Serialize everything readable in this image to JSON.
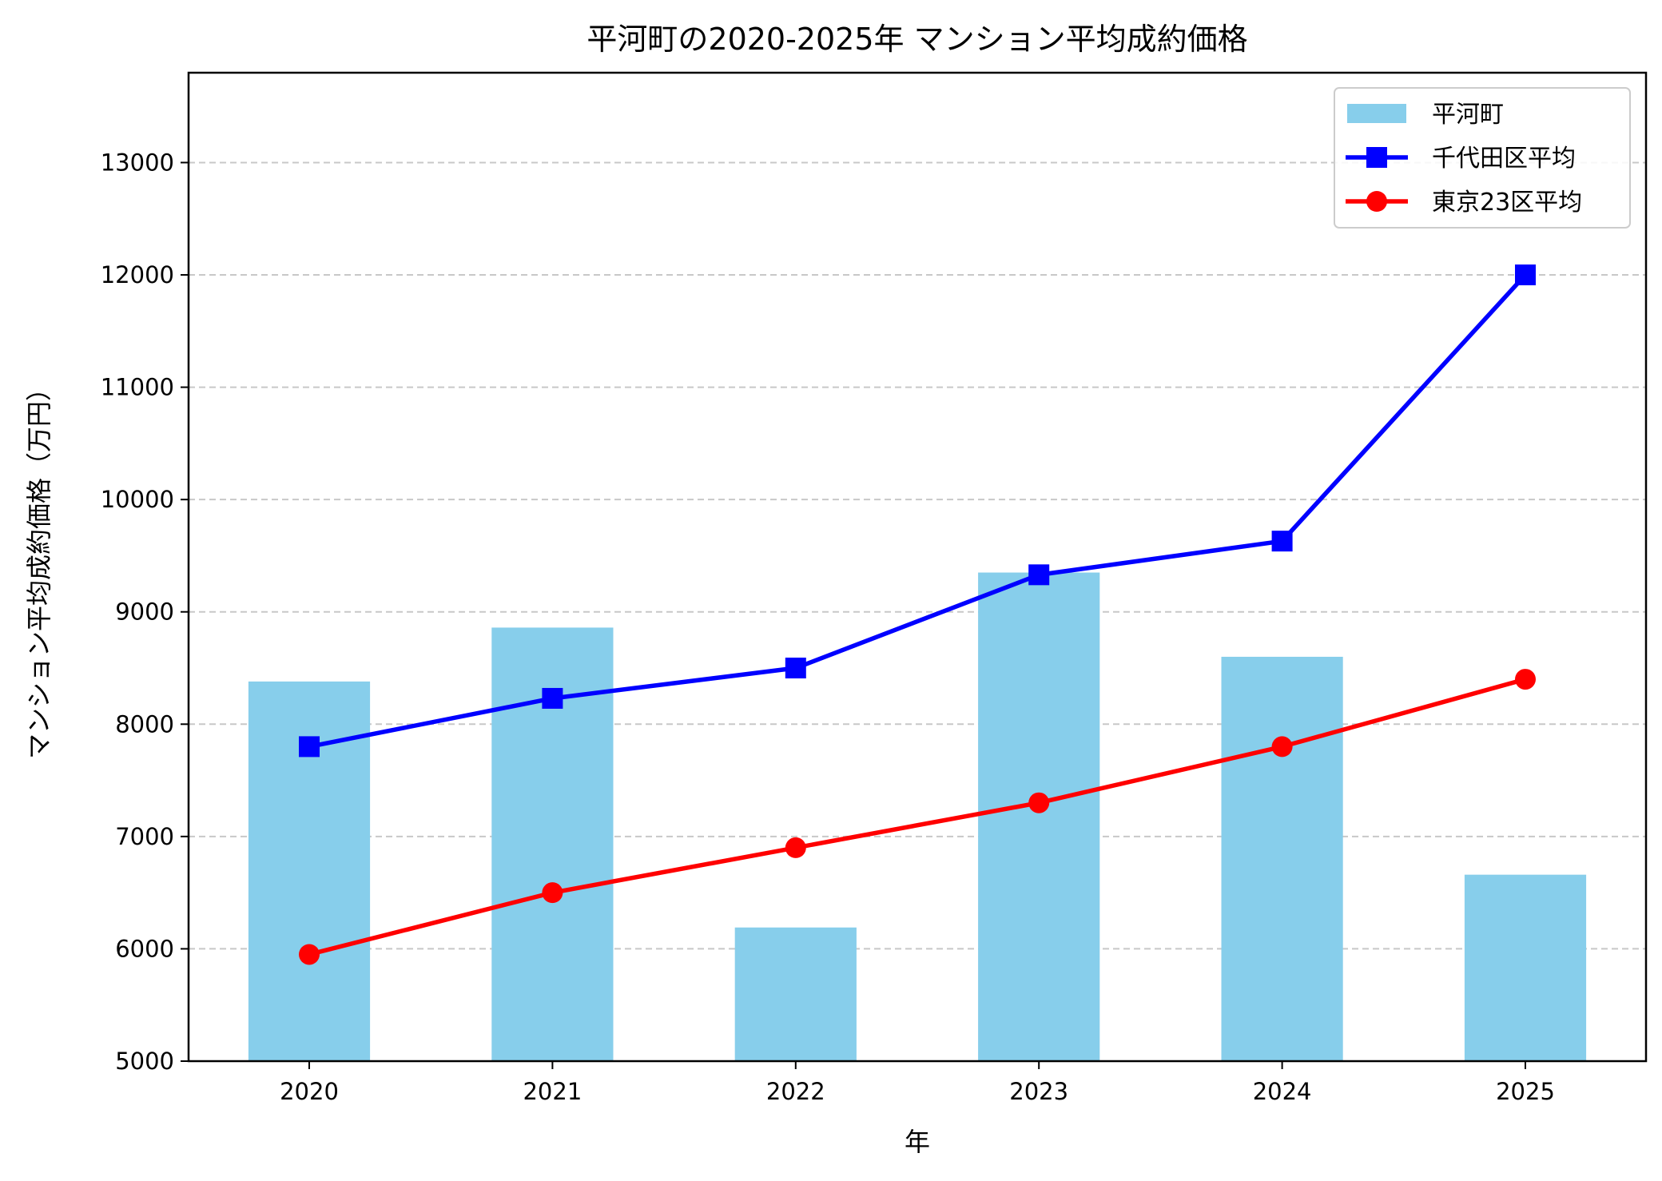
{
  "chart_data": {
    "type": "bar+line",
    "title": "平河町の2020-2025年 マンション平均成約価格",
    "xlabel": "年",
    "ylabel": "マンション平均成約価格（万円）",
    "categories": [
      "2020",
      "2021",
      "2022",
      "2023",
      "2024",
      "2025"
    ],
    "ylim": [
      5000,
      13800
    ],
    "yticks": [
      5000,
      6000,
      7000,
      8000,
      9000,
      10000,
      11000,
      12000,
      13000
    ],
    "grid": "y-dashed",
    "legend_position": "top-right",
    "series": [
      {
        "name": "平河町",
        "kind": "bar",
        "color": "#87ceeb",
        "values": [
          8380,
          8860,
          6190,
          9350,
          8600,
          6660
        ]
      },
      {
        "name": "千代田区平均",
        "kind": "line",
        "marker": "square",
        "color": "#0000ff",
        "values": [
          7800,
          8230,
          8500,
          9330,
          9630,
          12000
        ]
      },
      {
        "name": "東京23区平均",
        "kind": "line",
        "marker": "circle",
        "color": "#ff0000",
        "values": [
          5950,
          6500,
          6900,
          7300,
          7800,
          8400
        ]
      }
    ]
  }
}
